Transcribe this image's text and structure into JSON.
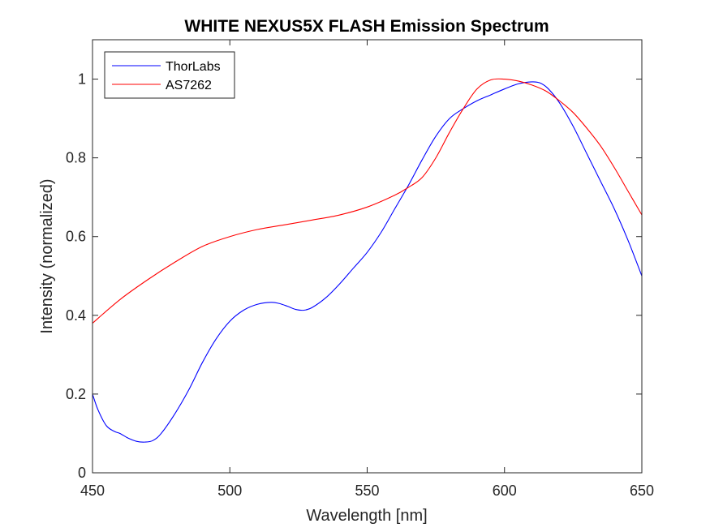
{
  "chart_data": {
    "type": "line",
    "title": "WHITE NEXUS5X FLASH Emission Spectrum",
    "xlabel": "Wavelength [nm]",
    "ylabel": "Intensity (normalized)",
    "xlim": [
      450,
      650
    ],
    "ylim": [
      0,
      1.1
    ],
    "xticks": [
      450,
      500,
      550,
      600,
      650
    ],
    "yticks": [
      0,
      0.2,
      0.4,
      0.6,
      0.8,
      1
    ],
    "xtick_labels": [
      "450",
      "500",
      "550",
      "600",
      "650"
    ],
    "ytick_labels": [
      "0",
      "0.2",
      "0.4",
      "0.6",
      "0.8",
      "1"
    ],
    "legend_position": "top-left",
    "grid": false,
    "series": [
      {
        "name": "ThorLabs",
        "color": "#0000ff",
        "x": [
          450,
          452,
          455,
          458,
          460,
          463,
          466,
          469,
          472,
          475,
          480,
          485,
          490,
          495,
          500,
          505,
          510,
          515,
          518,
          521,
          524,
          527,
          530,
          535,
          540,
          545,
          550,
          555,
          560,
          565,
          570,
          575,
          580,
          585,
          590,
          595,
          600,
          605,
          610,
          613,
          616,
          620,
          625,
          630,
          635,
          640,
          645,
          650
        ],
        "y": [
          0.2,
          0.16,
          0.12,
          0.105,
          0.1,
          0.088,
          0.08,
          0.078,
          0.082,
          0.1,
          0.15,
          0.21,
          0.28,
          0.34,
          0.385,
          0.413,
          0.428,
          0.433,
          0.43,
          0.423,
          0.415,
          0.413,
          0.42,
          0.445,
          0.48,
          0.52,
          0.56,
          0.61,
          0.67,
          0.73,
          0.795,
          0.855,
          0.9,
          0.925,
          0.945,
          0.96,
          0.975,
          0.988,
          0.993,
          0.99,
          0.975,
          0.94,
          0.88,
          0.81,
          0.74,
          0.67,
          0.59,
          0.5
        ]
      },
      {
        "name": "AS7262",
        "color": "#ff0000",
        "x": [
          450,
          460,
          470,
          480,
          490,
          500,
          510,
          520,
          530,
          540,
          550,
          560,
          565,
          570,
          575,
          580,
          585,
          590,
          595,
          600,
          605,
          610,
          615,
          620,
          625,
          630,
          635,
          640,
          645,
          650
        ],
        "y": [
          0.38,
          0.44,
          0.49,
          0.535,
          0.575,
          0.6,
          0.618,
          0.63,
          0.642,
          0.655,
          0.675,
          0.705,
          0.725,
          0.75,
          0.8,
          0.865,
          0.925,
          0.975,
          0.998,
          1.0,
          0.995,
          0.985,
          0.97,
          0.945,
          0.915,
          0.875,
          0.83,
          0.775,
          0.715,
          0.655
        ]
      }
    ]
  }
}
